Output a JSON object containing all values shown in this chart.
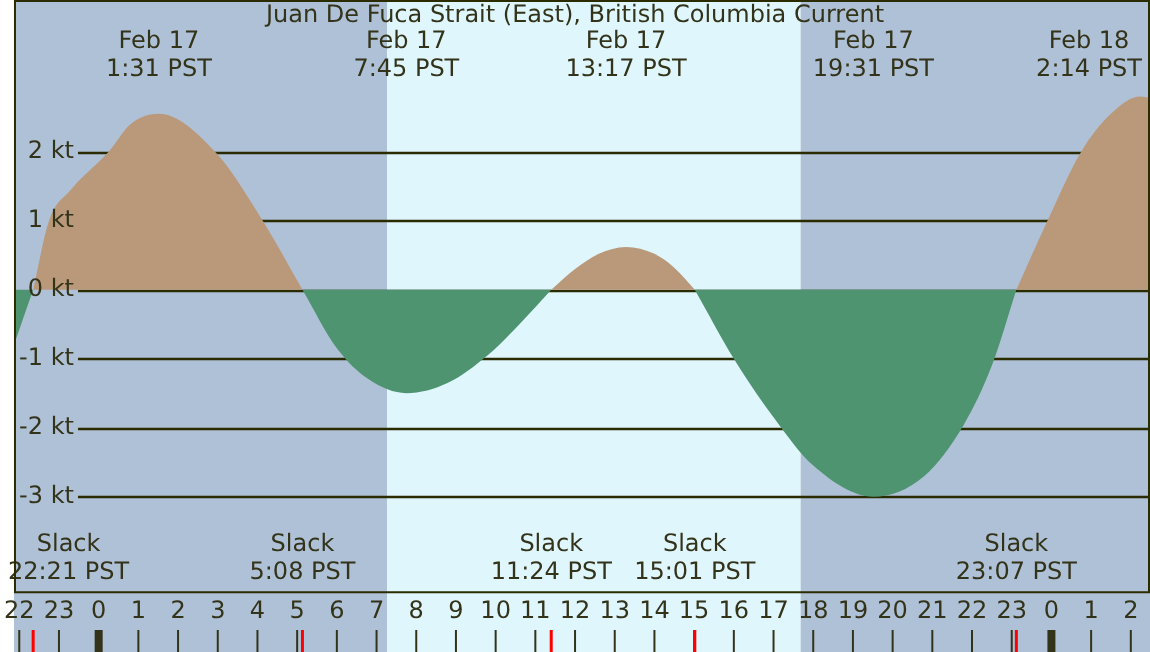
{
  "chart_data": {
    "type": "area",
    "title": "Juan De Fuca Strait (East), British Columbia Current",
    "xlim": [
      "--02-16T21:52",
      "--02-18T02:29"
    ],
    "xticks": [
      {
        "value": "--02-16T22:00",
        "label": "22"
      },
      {
        "value": "--02-16T23:00",
        "label": "23"
      },
      {
        "value": "--02-17T00:00",
        "label": "0"
      },
      {
        "value": "--02-17T01:00",
        "label": "1"
      },
      {
        "value": "--02-17T02:00",
        "label": "2"
      },
      {
        "value": "--02-17T03:00",
        "label": "3"
      },
      {
        "value": "--02-17T04:00",
        "label": "4"
      },
      {
        "value": "--02-17T05:00",
        "label": "5"
      },
      {
        "value": "--02-17T06:00",
        "label": "6"
      },
      {
        "value": "--02-17T07:00",
        "label": "7"
      },
      {
        "value": "--02-17T08:00",
        "label": "8"
      },
      {
        "value": "--02-17T09:00",
        "label": "9"
      },
      {
        "value": "--02-17T10:00",
        "label": "10"
      },
      {
        "value": "--02-17T11:00",
        "label": "11"
      },
      {
        "value": "--02-17T12:00",
        "label": "12"
      },
      {
        "value": "--02-17T13:00",
        "label": "13"
      },
      {
        "value": "--02-17T14:00",
        "label": "14"
      },
      {
        "value": "--02-17T15:00",
        "label": "15"
      },
      {
        "value": "--02-17T16:00",
        "label": "16"
      },
      {
        "value": "--02-17T17:00",
        "label": "17"
      },
      {
        "value": "--02-17T18:00",
        "label": "18"
      },
      {
        "value": "--02-17T19:00",
        "label": "19"
      },
      {
        "value": "--02-17T20:00",
        "label": "20"
      },
      {
        "value": "--02-17T21:00",
        "label": "21"
      },
      {
        "value": "--02-17T22:00",
        "label": "22"
      },
      {
        "value": "--02-17T23:00",
        "label": "23"
      },
      {
        "value": "--02-18T00:00",
        "label": "0"
      },
      {
        "value": "--02-18T01:00",
        "label": "1"
      },
      {
        "value": "--02-18T02:00",
        "label": "2"
      }
    ],
    "ylim": [
      -4.4,
      4.2
    ],
    "yticks": [
      {
        "value": -3,
        "label": "-3 kt"
      },
      {
        "value": -2,
        "label": "-2 kt"
      },
      {
        "value": -1,
        "label": "-1 kt"
      },
      {
        "value": 0,
        "label": "0 kt"
      },
      {
        "value": 1,
        "label": "1 kt"
      },
      {
        "value": 2,
        "label": "2 kt"
      }
    ],
    "grid": "y",
    "series": [
      {
        "color": "#b9997a",
        "x": [
          "--02-16T22:21",
          "--02-16T22:45",
          "--02-16T23:18",
          "--02-17T00:15",
          "--02-17T00:48",
          "--02-17T01:31",
          "--02-17T02:56",
          "--02-17T04:08",
          "--02-17T05:08",
          "--02-17T08:00",
          "--02-17T11:24",
          "--02-17T12:00",
          "--02-17T12:36",
          "--02-17T13:17",
          "--02-17T14:00",
          "--02-17T14:30",
          "--02-17T15:01",
          "--02-17T19:00",
          "--02-17T23:07",
          "--02-17T23:54",
          "--02-18T00:45",
          "--02-18T01:30",
          "--02-18T02:14",
          "--02-18T02:29"
        ],
        "values": [
          0,
          1,
          1.45,
          2,
          2.4,
          2.55,
          2,
          1,
          0,
          null,
          0,
          0.3,
          0.52,
          0.62,
          0.52,
          0.32,
          0,
          null,
          0,
          1,
          2,
          2.55,
          2.8,
          2.78
        ]
      },
      {
        "color": "#4f9470",
        "x": [
          "--02-16T21:52",
          "--02-16T22:21",
          "--02-17T00:00",
          "--02-17T05:08",
          "--02-17T06:00",
          "--02-17T06:48",
          "--02-17T07:45",
          "--02-17T08:48",
          "--02-17T09:48",
          "--02-17T10:36",
          "--02-17T11:24",
          "--02-17T13:00",
          "--02-17T15:01",
          "--02-17T16:00",
          "--02-17T17:00",
          "--02-17T18:00",
          "--02-17T19:31",
          "--02-17T20:48",
          "--02-17T21:48",
          "--02-17T22:30",
          "--02-17T23:07"
        ],
        "values": [
          -0.8,
          0,
          null,
          0,
          -0.85,
          -1.3,
          -1.5,
          -1.35,
          -0.95,
          -0.5,
          0,
          null,
          0,
          -1.0,
          -1.85,
          -2.55,
          -3.0,
          -2.7,
          -1.95,
          -1.1,
          0
        ]
      }
    ],
    "bands": [
      {
        "axis": "x",
        "from": "--02-16T21:52",
        "to": "--02-17T07:16",
        "color": "#afc1d6"
      },
      {
        "axis": "x",
        "from": "--02-17T07:16",
        "to": "--02-17T17:41",
        "color": "#dff6fd"
      },
      {
        "axis": "x",
        "from": "--02-17T17:41",
        "to": "--02-18T02:29",
        "color": "#afc1d6"
      }
    ],
    "annotations": [
      "Feb 17\n1:31 PST",
      "Feb 17\n7:45 PST",
      "Feb 17\n13:17 PST",
      "Feb 17\n19:31 PST",
      "Feb 18\n2:14 PST",
      "Slack\n22:21 PST",
      "Slack\n5:08 PST",
      "Slack\n11:24 PST",
      "Slack\n15:01 PST",
      "Slack\n23:07 PST"
    ]
  }
}
